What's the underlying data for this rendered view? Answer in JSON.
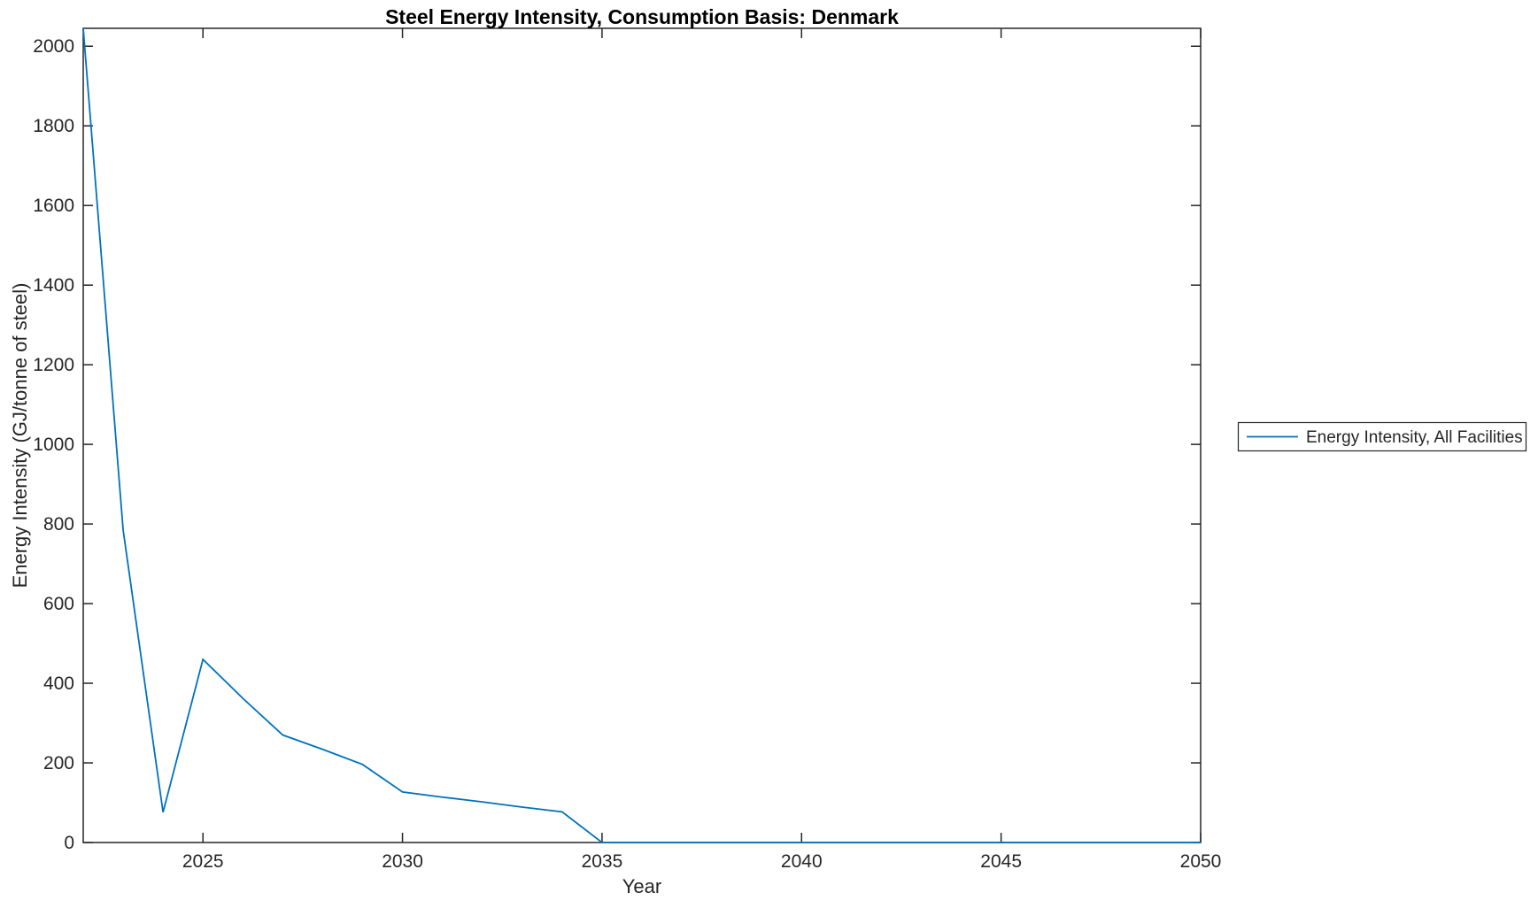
{
  "figure": {
    "background": "#ffffff",
    "axis_color": "#262626",
    "title_color": "#000000"
  },
  "chart_data": {
    "type": "line",
    "title": "Steel Energy Intensity, Consumption Basis: Denmark",
    "xlabel": "Year",
    "ylabel": "Energy Intensity (GJ/tonne of steel)",
    "grid": false,
    "legend_position": "right-outside",
    "xlim": [
      2022,
      2050
    ],
    "ylim": [
      0,
      2045
    ],
    "xticks": [
      2025,
      2030,
      2035,
      2040,
      2045,
      2050
    ],
    "yticks": [
      0,
      200,
      400,
      600,
      800,
      1000,
      1200,
      1400,
      1600,
      1800,
      2000
    ],
    "x": [
      2022,
      2023,
      2024,
      2025,
      2026,
      2027,
      2028,
      2029,
      2030,
      2031,
      2032,
      2033,
      2034,
      2035,
      2036,
      2037,
      2038,
      2039,
      2040,
      2041,
      2042,
      2043,
      2044,
      2045,
      2046,
      2047,
      2048,
      2049,
      2050
    ],
    "series": [
      {
        "name": "Energy Intensity, All Facilities",
        "color": "#0072BD",
        "values": [
          2045,
          785,
          76,
          460,
          362,
          270,
          234,
          196,
          127,
          114,
          102,
          89,
          77,
          0,
          0,
          0,
          0,
          0,
          0,
          0,
          0,
          0,
          0,
          0,
          0,
          0,
          0,
          0,
          0
        ]
      }
    ]
  },
  "legend": {
    "items": [
      {
        "label": "Energy Intensity, All Facilities",
        "color": "#0072BD"
      }
    ]
  }
}
